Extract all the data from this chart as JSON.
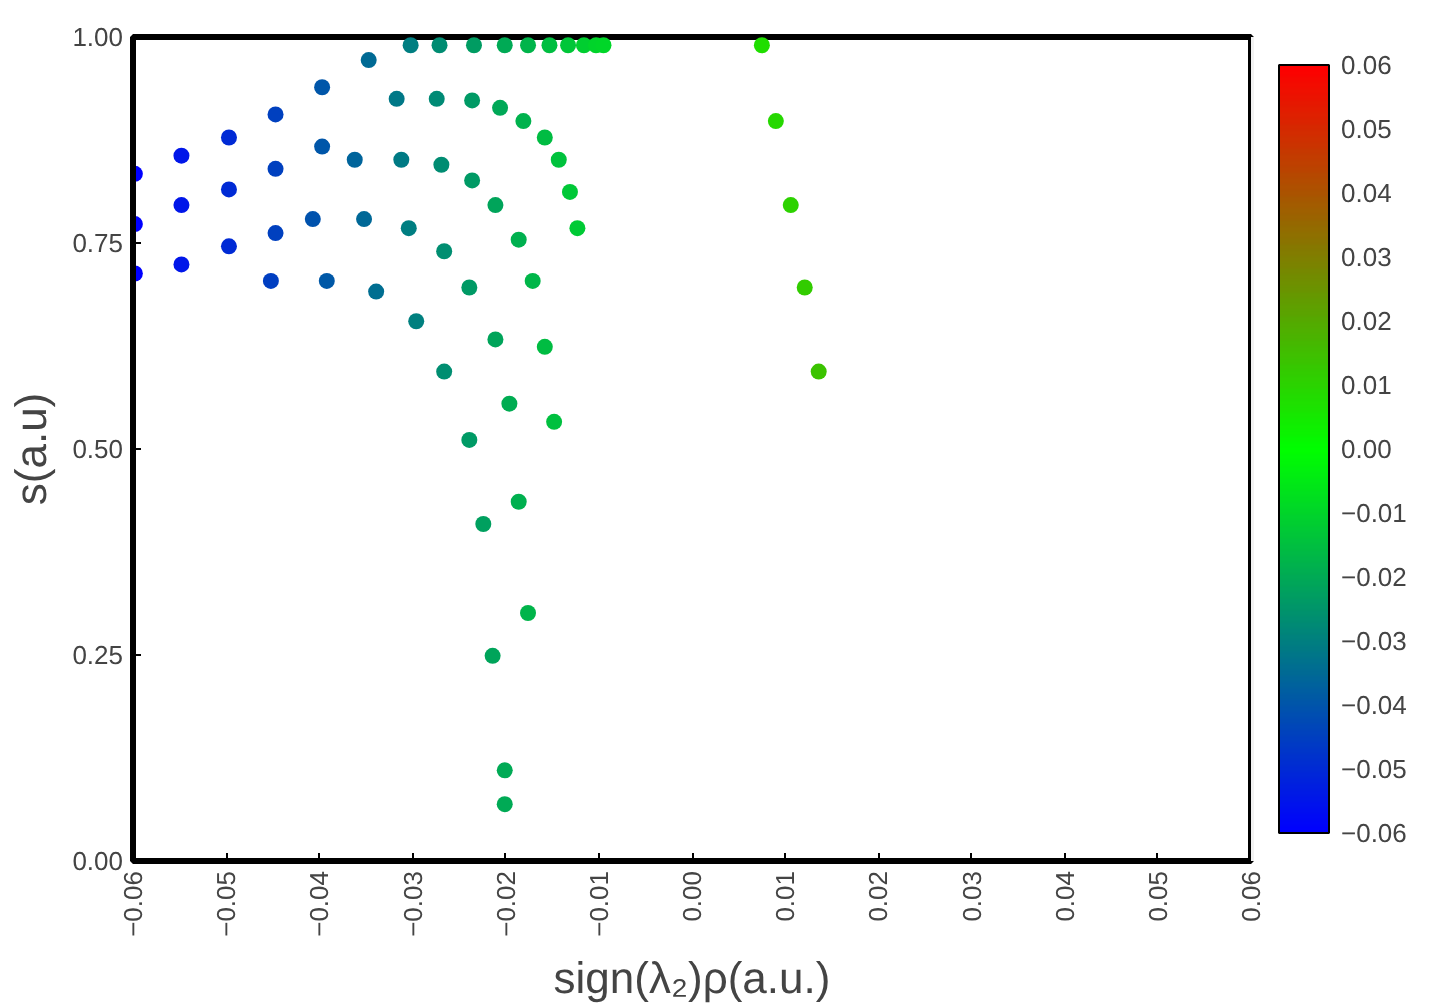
{
  "chart_data": {
    "type": "scatter",
    "xlabel": "sign(λ₂)ρ(a.u.)",
    "ylabel": "s(a.u)",
    "marker": "circle",
    "grid": false,
    "xlim": [
      -0.06,
      0.06
    ],
    "ylim": [
      0,
      1
    ],
    "xticks": [
      {
        "value": -0.06,
        "label": "−0.06"
      },
      {
        "value": -0.05,
        "label": "−0.05"
      },
      {
        "value": -0.04,
        "label": "−0.04"
      },
      {
        "value": -0.03,
        "label": "−0.03"
      },
      {
        "value": -0.02,
        "label": "−0.02"
      },
      {
        "value": -0.01,
        "label": "−0.01"
      },
      {
        "value": 0,
        "label": "0.00"
      },
      {
        "value": 0.01,
        "label": "0.01"
      },
      {
        "value": 0.02,
        "label": "0.02"
      },
      {
        "value": 0.03,
        "label": "0.03"
      },
      {
        "value": 0.04,
        "label": "0.04"
      },
      {
        "value": 0.05,
        "label": "0.05"
      },
      {
        "value": 0.06,
        "label": "0.06"
      }
    ],
    "yticks": [
      {
        "value": 0,
        "label": "0.00"
      },
      {
        "value": 0.25,
        "label": "0.25"
      },
      {
        "value": 0.5,
        "label": "0.50"
      },
      {
        "value": 0.75,
        "label": "0.75"
      },
      {
        "value": 1,
        "label": "1.00"
      }
    ],
    "clim": [
      -0.06,
      0.06
    ],
    "cticks": [
      {
        "value": -0.06,
        "label": "−0.06"
      },
      {
        "value": -0.05,
        "label": "−0.05"
      },
      {
        "value": -0.04,
        "label": "−0.04"
      },
      {
        "value": -0.03,
        "label": "−0.03"
      },
      {
        "value": -0.02,
        "label": "−0.02"
      },
      {
        "value": -0.01,
        "label": "−0.01"
      },
      {
        "value": 0,
        "label": "0.00"
      },
      {
        "value": 0.01,
        "label": "0.01"
      },
      {
        "value": 0.02,
        "label": "0.02"
      },
      {
        "value": 0.03,
        "label": "0.03"
      },
      {
        "value": 0.04,
        "label": "0.04"
      },
      {
        "value": 0.05,
        "label": "0.05"
      },
      {
        "value": 0.06,
        "label": "0.06"
      }
    ],
    "x": [
      -0.0452,
      -0.0407,
      -0.0362,
      -0.0317,
      -0.0271,
      -0.0392,
      -0.0352,
      -0.0312,
      -0.0274,
      -0.0234,
      -0.0339,
      -0.0304,
      -0.0269,
      -0.0236,
      -0.0201,
      -0.0296,
      -0.0266,
      -0.0236,
      -0.0206,
      -0.0176,
      -0.0266,
      -0.0239,
      -0.0211,
      -0.0181,
      -0.0153,
      -0.0239,
      -0.0211,
      -0.0186,
      -0.0158,
      -0.0133,
      -0.0224,
      -0.0196,
      -0.0171,
      -0.0143,
      -0.0116,
      -0.0214,
      -0.0186,
      -0.0158,
      -0.0131,
      -0.0103,
      -0.0201,
      -0.0201,
      -0.0176,
      -0.0148,
      -0.0123,
      -0.0095,
      -0.0598,
      -0.0548,
      -0.0497,
      -0.0447,
      -0.0397,
      -0.0347,
      -0.0302,
      -0.0598,
      -0.0548,
      -0.0497,
      -0.0447,
      -0.0397,
      -0.0598,
      -0.0548,
      -0.0497,
      -0.0447,
      0.0075,
      0.009,
      0.0106,
      0.0121,
      0.0136
    ],
    "values": [
      0.704,
      0.779,
      0.851,
      0.925,
      0.99,
      0.704,
      0.779,
      0.851,
      0.925,
      0.99,
      0.691,
      0.768,
      0.845,
      0.923,
      0.99,
      0.655,
      0.74,
      0.826,
      0.914,
      0.99,
      0.594,
      0.696,
      0.796,
      0.898,
      0.99,
      0.511,
      0.633,
      0.754,
      0.878,
      0.99,
      0.409,
      0.555,
      0.704,
      0.851,
      0.99,
      0.249,
      0.436,
      0.624,
      0.812,
      0.99,
      0.069,
      0.11,
      0.301,
      0.533,
      0.768,
      0.99,
      0.834,
      0.856,
      0.878,
      0.906,
      0.939,
      0.972,
      0.99,
      0.773,
      0.796,
      0.815,
      0.84,
      0.867,
      0.713,
      0.724,
      0.746,
      0.762,
      0.99,
      0.898,
      0.796,
      0.696,
      0.594
    ],
    "cvalues": [
      -0.0452,
      -0.0407,
      -0.0362,
      -0.0317,
      -0.0271,
      -0.0392,
      -0.0352,
      -0.0312,
      -0.0274,
      -0.0234,
      -0.0339,
      -0.0304,
      -0.0269,
      -0.0236,
      -0.0201,
      -0.0296,
      -0.0266,
      -0.0236,
      -0.0206,
      -0.0176,
      -0.0266,
      -0.0239,
      -0.0211,
      -0.0181,
      -0.0153,
      -0.0239,
      -0.0211,
      -0.0186,
      -0.0158,
      -0.0133,
      -0.0224,
      -0.0196,
      -0.0171,
      -0.0143,
      -0.0116,
      -0.0214,
      -0.0186,
      -0.0158,
      -0.0131,
      -0.0103,
      -0.0201,
      -0.0201,
      -0.0176,
      -0.0148,
      -0.0123,
      -0.0095,
      -0.0598,
      -0.0548,
      -0.0497,
      -0.0447,
      -0.0397,
      -0.0347,
      -0.0302,
      -0.0598,
      -0.0548,
      -0.0497,
      -0.0447,
      -0.0397,
      -0.0598,
      -0.0548,
      -0.0497,
      -0.0447,
      0.0075,
      0.009,
      0.0106,
      0.0121,
      0.0136
    ]
  }
}
